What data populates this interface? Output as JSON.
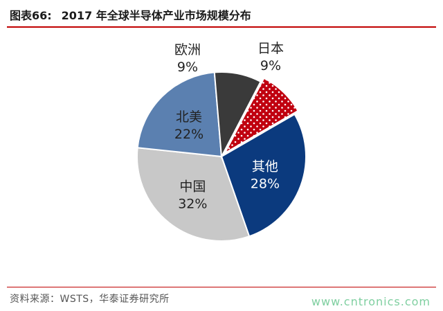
{
  "header": {
    "figure_label": "图表66:",
    "title": "2017 年全球半导体产业市场规模分布"
  },
  "source": "资料来源：WSTS，华泰证券研究所",
  "watermark": "www.cntronics.com",
  "colors": {
    "rule": "#c00000",
    "other": "#0b3a7e",
    "china": "#c8c8c8",
    "north_america": "#5b80b0",
    "europe": "#3a3a3a",
    "japan": "#c0000f"
  },
  "chart_data": {
    "type": "pie",
    "title": "2017 年全球半导体产业市场规模分布",
    "slices": [
      {
        "name": "其他",
        "value": 28,
        "label": "28%",
        "color": "#0b3a7e",
        "pattern": "solid",
        "text_color": "#ffffff"
      },
      {
        "name": "中国",
        "value": 32,
        "label": "32%",
        "color": "#c8c8c8",
        "pattern": "solid",
        "text_color": "#222222"
      },
      {
        "name": "北美",
        "value": 22,
        "label": "22%",
        "color": "#5b80b0",
        "pattern": "solid",
        "text_color": "#222222"
      },
      {
        "name": "欧洲",
        "value": 9,
        "label": "9%",
        "color": "#3a3a3a",
        "pattern": "solid",
        "text_color": "#222222",
        "label_outside": true
      },
      {
        "name": "日本",
        "value": 9,
        "label": "9%",
        "color": "#c0000f",
        "pattern": "dots",
        "text_color": "#222222",
        "label_outside": true
      }
    ],
    "legend": "none",
    "label_style": "name and percent on slice"
  }
}
